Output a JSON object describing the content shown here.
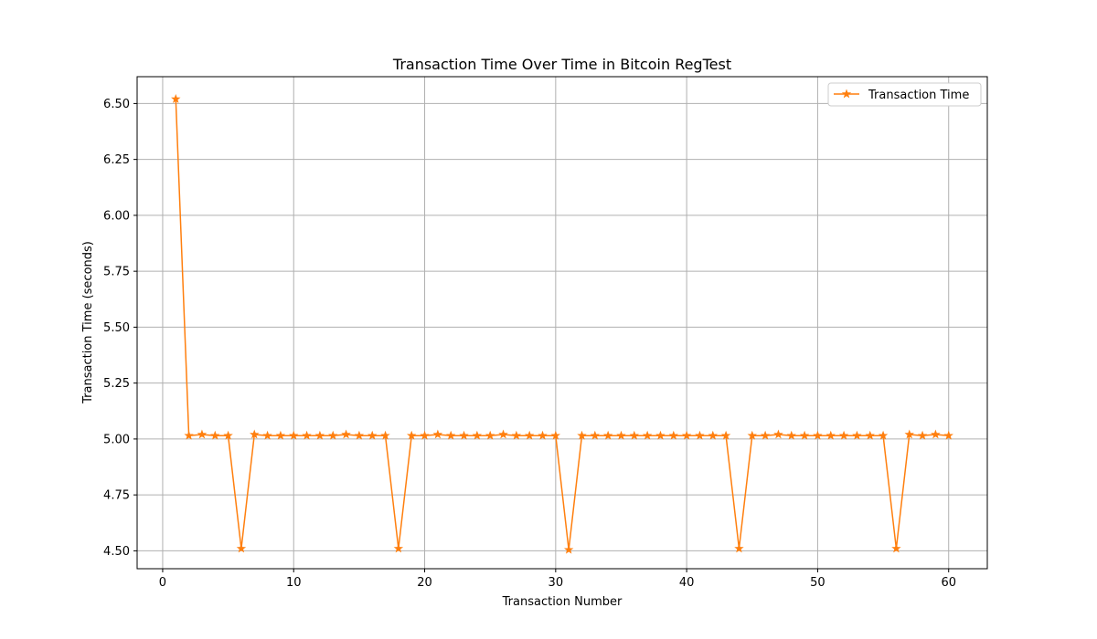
{
  "chart_data": {
    "type": "line",
    "title": "Transaction Time Over Time in Bitcoin RegTest",
    "xlabel": "Transaction Number",
    "ylabel": "Transaction Time (seconds)",
    "xlim": [
      -1.95,
      62.95
    ],
    "ylim": [
      4.42,
      6.62
    ],
    "xticks": [
      0,
      10,
      20,
      30,
      40,
      50,
      60
    ],
    "xtick_labels": [
      "0",
      "10",
      "20",
      "30",
      "40",
      "50",
      "60"
    ],
    "yticks": [
      4.5,
      4.75,
      5.0,
      5.25,
      5.5,
      5.75,
      6.0,
      6.25,
      6.5
    ],
    "ytick_labels": [
      "4.50",
      "4.75",
      "5.00",
      "5.25",
      "5.50",
      "5.75",
      "6.00",
      "6.25",
      "6.50"
    ],
    "grid": true,
    "legend_position": "top-right",
    "series": [
      {
        "name": "Transaction Time",
        "color": "#ff7f0e",
        "marker": "star",
        "x": [
          1,
          2,
          3,
          4,
          5,
          6,
          7,
          8,
          9,
          10,
          11,
          12,
          13,
          14,
          15,
          16,
          17,
          18,
          19,
          20,
          21,
          22,
          23,
          24,
          25,
          26,
          27,
          28,
          29,
          30,
          31,
          32,
          33,
          34,
          35,
          36,
          37,
          38,
          39,
          40,
          41,
          42,
          43,
          44,
          45,
          46,
          47,
          48,
          49,
          50,
          51,
          52,
          53,
          54,
          55,
          56,
          57,
          58,
          59,
          60
        ],
        "values": [
          6.52,
          5.015,
          5.02,
          5.015,
          5.015,
          4.51,
          5.02,
          5.015,
          5.015,
          5.015,
          5.015,
          5.015,
          5.015,
          5.02,
          5.015,
          5.015,
          5.015,
          4.51,
          5.015,
          5.015,
          5.02,
          5.015,
          5.015,
          5.015,
          5.015,
          5.02,
          5.015,
          5.015,
          5.015,
          5.015,
          4.505,
          5.015,
          5.015,
          5.015,
          5.015,
          5.015,
          5.015,
          5.015,
          5.015,
          5.015,
          5.015,
          5.015,
          5.015,
          4.51,
          5.015,
          5.015,
          5.02,
          5.015,
          5.015,
          5.015,
          5.015,
          5.015,
          5.015,
          5.015,
          5.015,
          4.51,
          5.02,
          5.015,
          5.02,
          5.015
        ]
      }
    ]
  }
}
